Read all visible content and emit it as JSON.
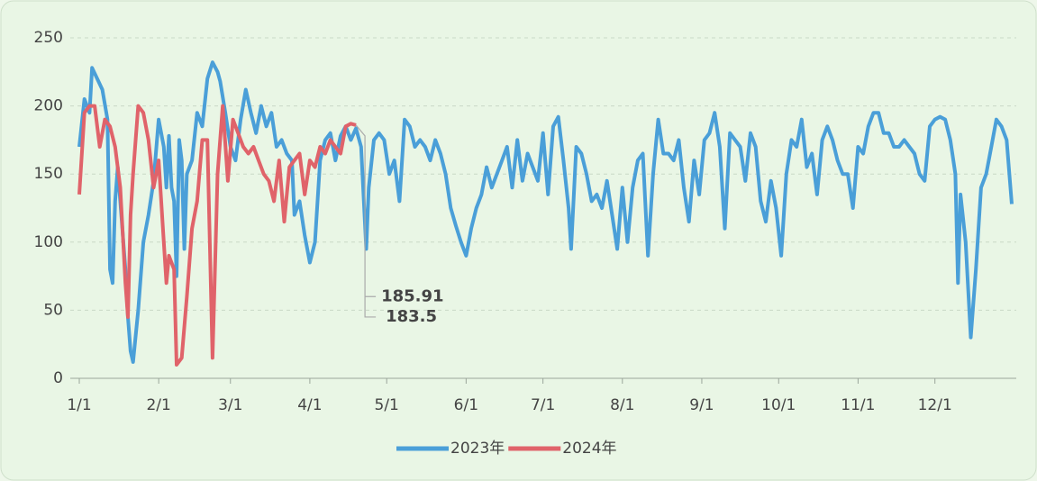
{
  "chart_data": {
    "type": "line",
    "xlim": [
      0,
      364
    ],
    "xticks": [
      {
        "value": 0,
        "label": "1/1"
      },
      {
        "value": 31,
        "label": "2/1"
      },
      {
        "value": 59,
        "label": "3/1"
      },
      {
        "value": 90,
        "label": "4/1"
      },
      {
        "value": 120,
        "label": "5/1"
      },
      {
        "value": 151,
        "label": "6/1"
      },
      {
        "value": 181,
        "label": "7/1"
      },
      {
        "value": 212,
        "label": "8/1"
      },
      {
        "value": 243,
        "label": "9/1"
      },
      {
        "value": 273,
        "label": "10/1"
      },
      {
        "value": 304,
        "label": "11/1"
      },
      {
        "value": 334,
        "label": "12/1"
      }
    ],
    "ylim": [
      0,
      250
    ],
    "yticks": [
      0,
      50,
      100,
      150,
      200,
      250
    ],
    "grid": true,
    "legend": "bottom",
    "series": [
      {
        "name": "2023年",
        "color": "#4a9fd8",
        "x": [
          0,
          2,
          4,
          5,
          7,
          9,
          11,
          12,
          13,
          14,
          15,
          16,
          18,
          19,
          20,
          21,
          23,
          25,
          27,
          29,
          31,
          33,
          34,
          35,
          36,
          37,
          38,
          39,
          40,
          41,
          42,
          44,
          46,
          48,
          50,
          52,
          54,
          55,
          57,
          59,
          61,
          63,
          65,
          67,
          69,
          71,
          73,
          75,
          77,
          79,
          81,
          83,
          84,
          86,
          88,
          90,
          92,
          94,
          96,
          98,
          100,
          102,
          104,
          106,
          108,
          110,
          112,
          113,
          115,
          117,
          119,
          121,
          123,
          125,
          127,
          129,
          131,
          133,
          135,
          137,
          139,
          141,
          143,
          145,
          147,
          149,
          151,
          153,
          155,
          157,
          159,
          161,
          163,
          165,
          167,
          169,
          171,
          173,
          175,
          177,
          179,
          181,
          183,
          185,
          187,
          189,
          191,
          192,
          194,
          196,
          198,
          200,
          202,
          204,
          206,
          208,
          210,
          212,
          214,
          216,
          218,
          220,
          222,
          224,
          226,
          228,
          230,
          232,
          234,
          236,
          238,
          240,
          242,
          244,
          246,
          248,
          250,
          252,
          254,
          256,
          258,
          260,
          262,
          264,
          266,
          268,
          270,
          272,
          274,
          276,
          278,
          280,
          282,
          284,
          286,
          288,
          290,
          292,
          294,
          296,
          298,
          300,
          302,
          304,
          306,
          308,
          310,
          312,
          314,
          316,
          318,
          320,
          322,
          324,
          326,
          328,
          330,
          332,
          334,
          336,
          338,
          340,
          342,
          343,
          344,
          346,
          348,
          350,
          352,
          354,
          356,
          358,
          360,
          362,
          364
        ],
        "values": [
          170,
          205,
          195,
          228,
          220,
          212,
          190,
          80,
          70,
          130,
          155,
          130,
          80,
          45,
          20,
          12,
          50,
          100,
          120,
          145,
          190,
          170,
          140,
          178,
          140,
          130,
          75,
          175,
          160,
          95,
          150,
          160,
          195,
          185,
          220,
          232,
          225,
          218,
          195,
          170,
          160,
          190,
          212,
          195,
          180,
          200,
          185,
          195,
          170,
          175,
          165,
          160,
          120,
          130,
          105,
          85,
          100,
          160,
          175,
          180,
          160,
          178,
          185,
          175,
          183.5,
          170,
          95,
          140,
          175,
          180,
          175,
          150,
          160,
          130,
          190,
          185,
          170,
          175,
          170,
          160,
          175,
          165,
          150,
          125,
          112,
          100,
          90,
          110,
          125,
          135,
          155,
          140,
          150,
          160,
          170,
          140,
          175,
          145,
          165,
          155,
          145,
          180,
          135,
          185,
          192,
          160,
          125,
          95,
          170,
          165,
          150,
          130,
          135,
          125,
          145,
          120,
          95,
          140,
          100,
          140,
          160,
          165,
          90,
          150,
          190,
          165,
          165,
          160,
          175,
          140,
          115,
          160,
          135,
          175,
          180,
          195,
          170,
          110,
          180,
          175,
          170,
          145,
          180,
          170,
          130,
          115,
          145,
          125,
          90,
          150,
          175,
          170,
          190,
          155,
          165,
          135,
          175,
          185,
          175,
          160,
          150,
          150,
          125,
          170,
          165,
          185,
          195,
          195,
          180,
          180,
          170,
          170,
          175,
          170,
          165,
          150,
          145,
          185,
          190,
          192,
          190,
          175,
          150,
          70,
          135,
          100,
          30,
          80,
          140,
          150,
          170,
          190,
          185,
          175,
          128
        ]
      },
      {
        "name": "2024年",
        "color": "#e0636a",
        "x": [
          0,
          2,
          4,
          6,
          8,
          10,
          12,
          14,
          16,
          18,
          19,
          20,
          21,
          23,
          25,
          27,
          29,
          31,
          33,
          34,
          35,
          37,
          38,
          40,
          42,
          44,
          46,
          48,
          50,
          52,
          54,
          56,
          58,
          60,
          62,
          64,
          66,
          68,
          70,
          72,
          74,
          76,
          78,
          80,
          82,
          84,
          86,
          88,
          90,
          92,
          94,
          96,
          98,
          100,
          102,
          104,
          106,
          108
        ],
        "values": [
          135,
          195,
          200,
          200,
          170,
          190,
          185,
          170,
          140,
          70,
          45,
          120,
          150,
          200,
          195,
          175,
          140,
          160,
          100,
          70,
          90,
          80,
          10,
          15,
          60,
          110,
          130,
          175,
          175,
          15,
          150,
          200,
          145,
          190,
          180,
          170,
          165,
          170,
          160,
          150,
          145,
          130,
          160,
          115,
          155,
          160,
          165,
          135,
          160,
          155,
          170,
          165,
          175,
          170,
          165,
          185,
          187,
          185.91
        ]
      }
    ],
    "annotations": [
      {
        "text": "185.91",
        "color": "#e0636a"
      },
      {
        "text": "183.5",
        "color": "#4a9fd8"
      }
    ]
  }
}
